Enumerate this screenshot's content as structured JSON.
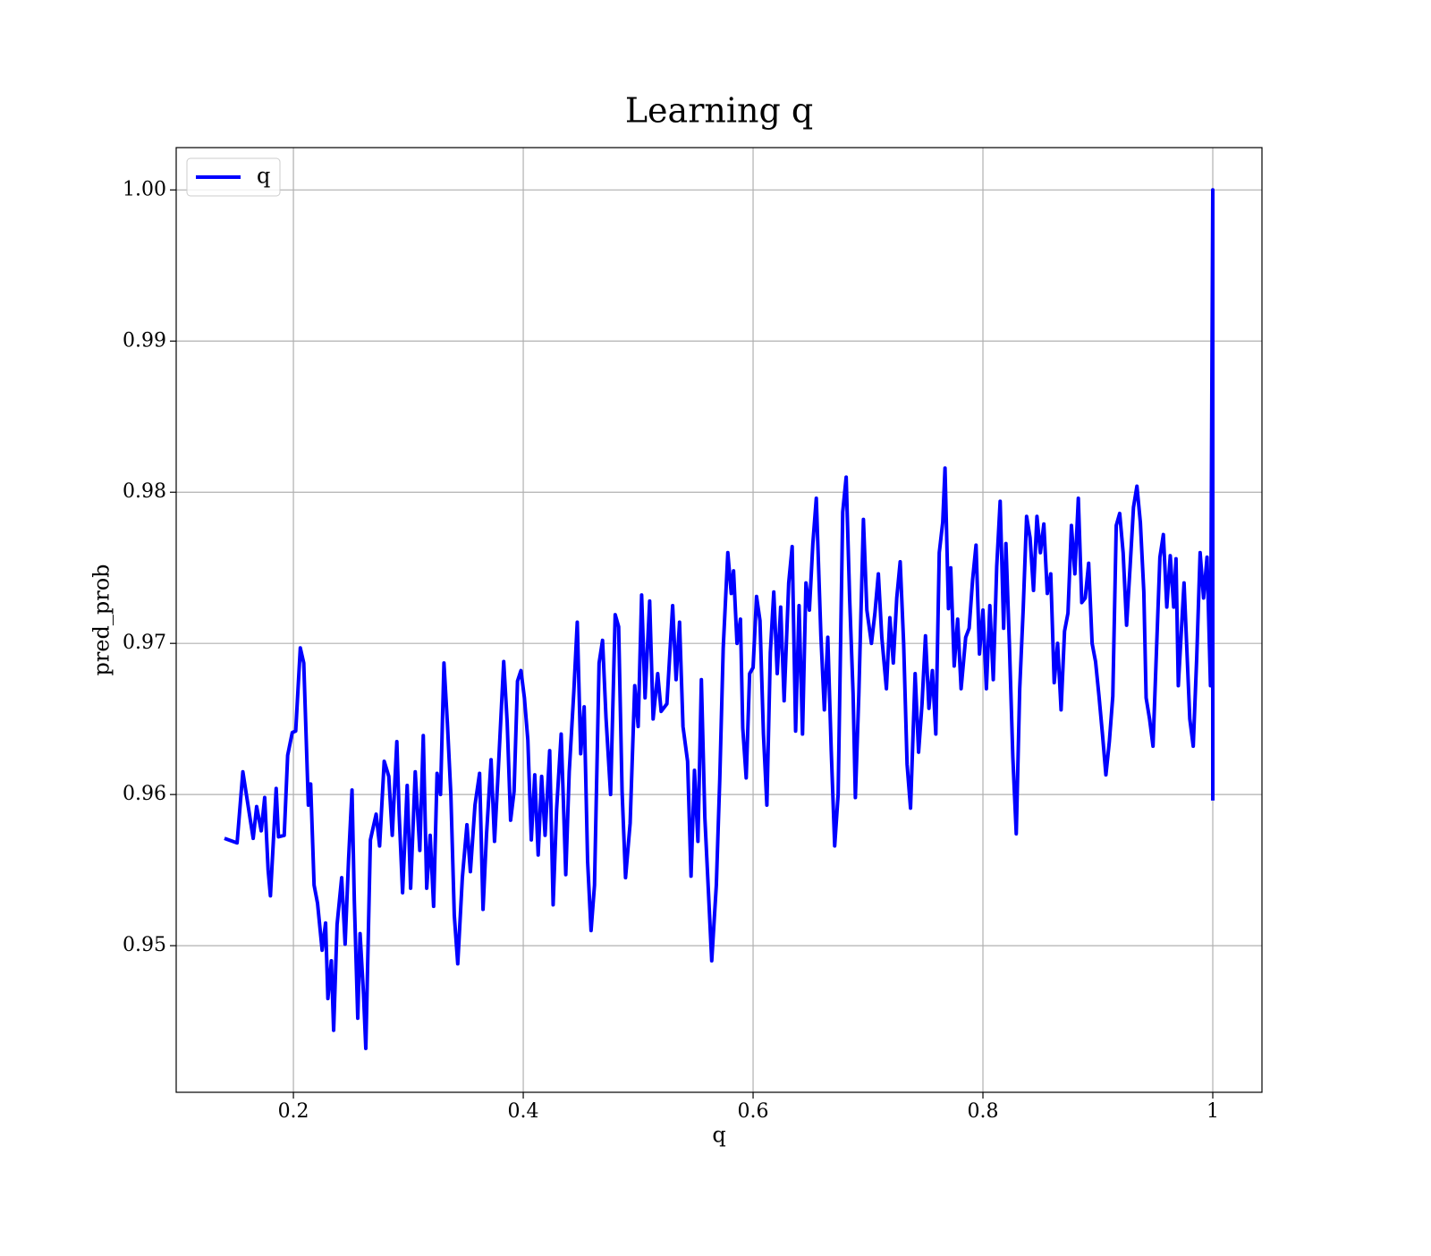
{
  "chart_data": {
    "type": "line",
    "title": "Learning q",
    "xlabel": "q",
    "ylabel": "pred_prob",
    "xlim": [
      0.098,
      1.0428
    ],
    "ylim": [
      0.9403,
      1.0028
    ],
    "xticks": [
      0.2,
      0.4,
      0.6,
      0.8,
      1.0
    ],
    "yticks": [
      0.95,
      0.96,
      0.97,
      0.98,
      0.99,
      {
        "value": 1.0,
        "label": "1.00"
      }
    ],
    "grid": true,
    "legend": "upper left",
    "x": [
      0.14,
      0.151,
      0.156,
      0.165,
      0.168,
      0.172,
      0.175,
      0.178,
      0.18,
      0.185,
      0.187,
      0.192,
      0.195,
      0.199,
      0.202,
      0.206,
      0.209,
      0.213,
      0.215,
      0.218,
      0.221,
      0.225,
      0.228,
      0.23,
      0.233,
      0.235,
      0.238,
      0.242,
      0.245,
      0.248,
      0.251,
      0.253,
      0.256,
      0.258,
      0.261,
      0.263,
      0.267,
      0.272,
      0.275,
      0.279,
      0.283,
      0.286,
      0.29,
      0.292,
      0.295,
      0.299,
      0.302,
      0.306,
      0.31,
      0.313,
      0.316,
      0.319,
      0.322,
      0.325,
      0.328,
      0.331,
      0.334,
      0.337,
      0.34,
      0.343,
      0.347,
      0.351,
      0.354,
      0.358,
      0.362,
      0.365,
      0.368,
      0.372,
      0.375,
      0.378,
      0.383,
      0.386,
      0.389,
      0.392,
      0.395,
      0.398,
      0.401,
      0.404,
      0.407,
      0.41,
      0.413,
      0.416,
      0.419,
      0.423,
      0.426,
      0.429,
      0.433,
      0.437,
      0.44,
      0.444,
      0.447,
      0.45,
      0.453,
      0.456,
      0.459,
      0.462,
      0.466,
      0.469,
      0.472,
      0.476,
      0.48,
      0.483,
      0.486,
      0.489,
      0.493,
      0.497,
      0.5,
      0.503,
      0.506,
      0.51,
      0.513,
      0.517,
      0.52,
      0.525,
      0.53,
      0.533,
      0.536,
      0.539,
      0.543,
      0.546,
      0.549,
      0.552,
      0.555,
      0.558,
      0.561,
      0.564,
      0.568,
      0.571,
      0.574,
      0.578,
      0.581,
      0.583,
      0.586,
      0.589,
      0.591,
      0.594,
      0.597,
      0.6,
      0.603,
      0.606,
      0.609,
      0.612,
      0.615,
      0.618,
      0.621,
      0.624,
      0.627,
      0.631,
      0.634,
      0.637,
      0.64,
      0.643,
      0.646,
      0.649,
      0.652,
      0.655,
      0.659,
      0.662,
      0.665,
      0.668,
      0.671,
      0.674,
      0.678,
      0.681,
      0.684,
      0.687,
      0.689,
      0.692,
      0.696,
      0.699,
      0.703,
      0.706,
      0.709,
      0.712,
      0.716,
      0.719,
      0.722,
      0.725,
      0.728,
      0.731,
      0.734,
      0.737,
      0.741,
      0.744,
      0.747,
      0.75,
      0.753,
      0.756,
      0.759,
      0.762,
      0.765,
      0.767,
      0.77,
      0.772,
      0.775,
      0.778,
      0.781,
      0.785,
      0.788,
      0.791,
      0.794,
      0.797,
      0.8,
      0.803,
      0.806,
      0.809,
      0.812,
      0.815,
      0.818,
      0.82,
      0.823,
      0.826,
      0.829,
      0.832,
      0.835,
      0.838,
      0.841,
      0.844,
      0.847,
      0.85,
      0.853,
      0.856,
      0.859,
      0.862,
      0.865,
      0.868,
      0.871,
      0.874,
      0.877,
      0.88,
      0.883,
      0.886,
      0.889,
      0.892,
      0.895,
      0.898,
      0.901,
      0.904,
      0.907,
      0.91,
      0.913,
      0.916,
      0.919,
      0.922,
      0.925,
      0.928,
      0.931,
      0.934,
      0.937,
      0.94,
      0.942,
      0.945,
      0.948,
      0.951,
      0.954,
      0.957,
      0.96,
      0.963,
      0.966,
      0.968,
      0.97,
      0.975,
      0.98,
      0.983,
      0.986,
      0.989,
      0.992,
      0.995,
      0.998,
      1.0,
      1.0
    ],
    "series": [
      {
        "name": "q",
        "color": "#0000ff",
        "values": [
          0.9571,
          0.9568,
          0.9615,
          0.9571,
          0.9592,
          0.9576,
          0.9598,
          0.955,
          0.9533,
          0.9604,
          0.9572,
          0.9573,
          0.9626,
          0.9641,
          0.9642,
          0.9697,
          0.9687,
          0.9593,
          0.9607,
          0.954,
          0.9528,
          0.9497,
          0.9515,
          0.9465,
          0.949,
          0.9444,
          0.9514,
          0.9545,
          0.9501,
          0.9557,
          0.9603,
          0.953,
          0.9452,
          0.9508,
          0.9468,
          0.9432,
          0.957,
          0.9587,
          0.9566,
          0.9622,
          0.9612,
          0.9573,
          0.9635,
          0.9587,
          0.9535,
          0.9606,
          0.9538,
          0.9615,
          0.9563,
          0.9639,
          0.9538,
          0.9573,
          0.9526,
          0.9614,
          0.96,
          0.9687,
          0.9647,
          0.96,
          0.952,
          0.9488,
          0.9545,
          0.958,
          0.9549,
          0.9593,
          0.9614,
          0.9524,
          0.9573,
          0.9623,
          0.9569,
          0.9612,
          0.9688,
          0.9648,
          0.9583,
          0.9602,
          0.9675,
          0.9682,
          0.9664,
          0.9636,
          0.957,
          0.9613,
          0.956,
          0.9612,
          0.9573,
          0.9629,
          0.9527,
          0.959,
          0.964,
          0.9547,
          0.9615,
          0.9668,
          0.9714,
          0.9627,
          0.9658,
          0.9556,
          0.951,
          0.954,
          0.9687,
          0.9702,
          0.9651,
          0.96,
          0.9719,
          0.9711,
          0.9602,
          0.9545,
          0.9581,
          0.9672,
          0.9645,
          0.9732,
          0.9664,
          0.9728,
          0.965,
          0.968,
          0.9655,
          0.966,
          0.9725,
          0.9676,
          0.9714,
          0.9645,
          0.9622,
          0.9546,
          0.9616,
          0.9569,
          0.9676,
          0.9585,
          0.9538,
          0.949,
          0.954,
          0.961,
          0.9697,
          0.976,
          0.9733,
          0.9748,
          0.97,
          0.9716,
          0.9644,
          0.9611,
          0.968,
          0.9684,
          0.9731,
          0.9715,
          0.964,
          0.9593,
          0.9694,
          0.9734,
          0.968,
          0.9724,
          0.9662,
          0.974,
          0.9764,
          0.9642,
          0.9725,
          0.964,
          0.974,
          0.9722,
          0.9766,
          0.9796,
          0.9705,
          0.9656,
          0.9704,
          0.9629,
          0.9566,
          0.96,
          0.9787,
          0.981,
          0.973,
          0.9667,
          0.9598,
          0.9666,
          0.9782,
          0.9722,
          0.97,
          0.972,
          0.9746,
          0.9704,
          0.967,
          0.9717,
          0.9687,
          0.973,
          0.9754,
          0.97,
          0.962,
          0.9591,
          0.968,
          0.9628,
          0.966,
          0.9705,
          0.9657,
          0.9682,
          0.964,
          0.976,
          0.978,
          0.9816,
          0.9723,
          0.975,
          0.9685,
          0.9716,
          0.967,
          0.9704,
          0.971,
          0.9742,
          0.9765,
          0.9693,
          0.9722,
          0.967,
          0.9725,
          0.9676,
          0.9751,
          0.9794,
          0.971,
          0.9766,
          0.97,
          0.9625,
          0.9574,
          0.967,
          0.9722,
          0.9784,
          0.977,
          0.9735,
          0.9784,
          0.976,
          0.9779,
          0.9733,
          0.9746,
          0.9674,
          0.97,
          0.9656,
          0.9708,
          0.972,
          0.9778,
          0.9746,
          0.9796,
          0.9727,
          0.973,
          0.9753,
          0.97,
          0.9688,
          0.9665,
          0.964,
          0.9613,
          0.9635,
          0.9665,
          0.9778,
          0.9786,
          0.976,
          0.9712,
          0.975,
          0.979,
          0.9804,
          0.978,
          0.9734,
          0.9664,
          0.965,
          0.9632,
          0.9695,
          0.9757,
          0.9772,
          0.9724,
          0.9758,
          0.9724,
          0.9756,
          0.9672,
          0.974,
          0.965,
          0.9632,
          0.969,
          0.976,
          0.973,
          0.9757,
          0.9672,
          1.0,
          0.9596
        ]
      }
    ]
  }
}
